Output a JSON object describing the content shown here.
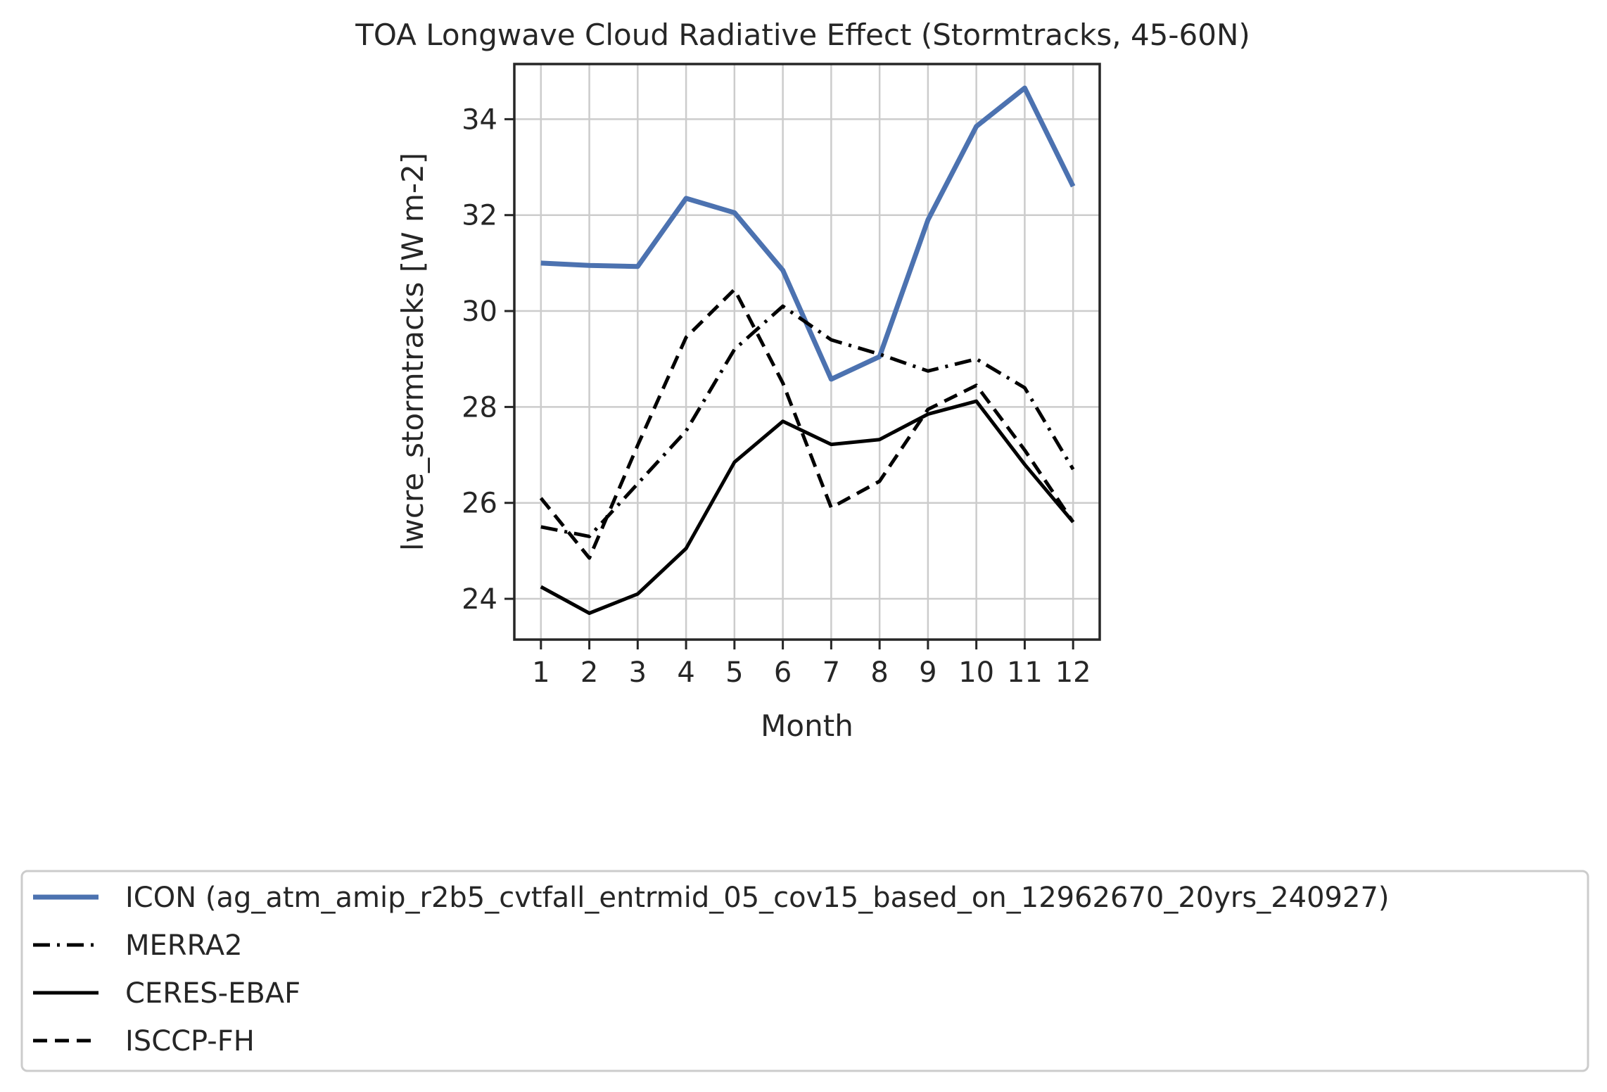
{
  "chart_data": {
    "type": "line",
    "title": "TOA Longwave Cloud Radiative Effect (Stormtracks, 45-60N)",
    "xlabel": "Month",
    "ylabel": "lwcre_stormtracks [W m-2]",
    "x": [
      1,
      2,
      3,
      4,
      5,
      6,
      7,
      8,
      9,
      10,
      11,
      12
    ],
    "xticks": [
      "1",
      "2",
      "3",
      "4",
      "5",
      "6",
      "7",
      "8",
      "9",
      "10",
      "11",
      "12"
    ],
    "yticks": [
      24,
      26,
      28,
      30,
      32,
      34
    ],
    "xlim": [
      0.45,
      12.55
    ],
    "ylim": [
      23.15,
      35.15
    ],
    "grid": true,
    "legend_position": "bottom-center",
    "series": [
      {
        "name": "ICON (ag_atm_amip_r2b5_cvtfall_entrmid_05_cov15_based_on_12962670_20yrs_240927)",
        "color": "#4c72b0",
        "style": "solid",
        "values": [
          31.0,
          30.95,
          30.93,
          32.35,
          32.05,
          30.85,
          28.58,
          29.05,
          31.9,
          33.85,
          34.65,
          32.6
        ]
      },
      {
        "name": "MERRA2",
        "color": "#000000",
        "style": "dashdot",
        "values": [
          25.5,
          25.3,
          26.4,
          27.5,
          29.2,
          30.1,
          29.4,
          29.1,
          28.75,
          29.0,
          28.4,
          26.7
        ]
      },
      {
        "name": "CERES-EBAF",
        "color": "#000000",
        "style": "solid",
        "values": [
          24.25,
          23.7,
          24.1,
          25.05,
          26.85,
          27.7,
          27.22,
          27.32,
          27.85,
          28.12,
          26.8,
          25.6
        ]
      },
      {
        "name": "ISCCP-FH",
        "color": "#000000",
        "style": "dashed",
        "values": [
          26.1,
          24.85,
          27.2,
          29.45,
          30.45,
          28.5,
          25.9,
          26.45,
          27.95,
          28.45,
          27.1,
          25.6
        ]
      }
    ]
  }
}
